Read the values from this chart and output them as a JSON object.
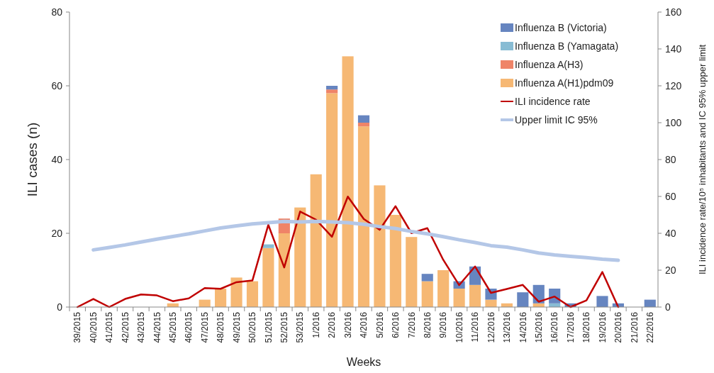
{
  "chart_data": {
    "type": "bar",
    "stacked": true,
    "xlabel": "Weeks",
    "ylabel": "ILI cases (n)",
    "y2label": "ILI incidence rate/10⁵ inhabitants and IC  95% upper limit",
    "categories": [
      "39/2015",
      "40/2015",
      "41/2015",
      "42/2015",
      "43/2015",
      "44/2015",
      "45/2015",
      "46/2015",
      "47/2015",
      "48/2015",
      "49/2015",
      "50/2015",
      "51/2015",
      "52/2015",
      "53/2015",
      "1/2016",
      "2/2016",
      "3/2016",
      "4/2016",
      "5/2016",
      "6/2016",
      "7/2016",
      "8/2016",
      "9/2016",
      "10/2016",
      "11/2016",
      "12/2016",
      "13/2016",
      "14/2016",
      "15/2016",
      "16/2016",
      "17/2016",
      "18/2016",
      "19/2016",
      "20/2016",
      "21/2016",
      "22/2016"
    ],
    "ylim": [
      0,
      80
    ],
    "yticks": [
      0,
      20,
      40,
      60,
      80
    ],
    "y2lim": [
      0,
      160
    ],
    "y2ticks": [
      0,
      20,
      40,
      60,
      80,
      100,
      120,
      140,
      160
    ],
    "legend": "top right",
    "grid": false,
    "series": [
      {
        "name": "Influenza A(H1)pdm09",
        "color": "#f6b874",
        "values": [
          0,
          0,
          0,
          0,
          0,
          0,
          1,
          0,
          2,
          5,
          8,
          7,
          16,
          20,
          27,
          36,
          58,
          68,
          49,
          33,
          25,
          19,
          7,
          10,
          5,
          6,
          2,
          1,
          0,
          1,
          0,
          0,
          0,
          0,
          0,
          0,
          0
        ]
      },
      {
        "name": "Influenza A(H3)",
        "color": "#ef8468",
        "values": [
          0,
          0,
          0,
          0,
          0,
          0,
          0,
          0,
          0,
          0,
          0,
          0,
          0,
          4,
          0,
          0,
          1,
          0,
          1,
          0,
          0,
          0,
          0,
          0,
          0,
          0,
          0,
          0,
          0,
          0,
          0,
          0,
          0,
          0,
          0,
          0,
          0
        ]
      },
      {
        "name": "Influenza B (Yamagata)",
        "color": "#88bcd4",
        "values": [
          0,
          0,
          0,
          0,
          0,
          0,
          0,
          0,
          0,
          0,
          0,
          0,
          1,
          0,
          0,
          0,
          0,
          0,
          0,
          0,
          0,
          0,
          0,
          0,
          0,
          0,
          0,
          0,
          0,
          0,
          1,
          0,
          0,
          0,
          0,
          0,
          0
        ]
      },
      {
        "name": "Influenza B (Victoria)",
        "color": "#6685c0",
        "values": [
          0,
          0,
          0,
          0,
          0,
          0,
          0,
          0,
          0,
          0,
          0,
          0,
          0,
          0,
          0,
          0,
          1,
          0,
          2,
          0,
          0,
          0,
          2,
          0,
          2,
          5,
          3,
          0,
          4,
          5,
          4,
          1,
          0,
          3,
          1,
          0,
          2
        ]
      },
      {
        "name": "ILI incidence rate",
        "type": "line",
        "axis": "y2",
        "color": "#c00000",
        "values": [
          0,
          4.4,
          0,
          4.4,
          6.8,
          6.3,
          3.2,
          4.7,
          10.3,
          9.9,
          13.5,
          14.4,
          44.6,
          21.5,
          51.8,
          47.4,
          38.1,
          59.9,
          47.8,
          41.9,
          54.7,
          40.1,
          42.8,
          25.6,
          11.9,
          22,
          7.7,
          9.8,
          12,
          2.9,
          5.7,
          0,
          3.6,
          19,
          0,
          null,
          null
        ]
      },
      {
        "name": "Upper limit IC 95%",
        "type": "line",
        "axis": "y2",
        "color": "#b4c7e7",
        "values": [
          null,
          31,
          32.3,
          33.7,
          35.3,
          36.8,
          38.3,
          39.7,
          41.3,
          42.9,
          44,
          45.1,
          45.8,
          46.4,
          46.2,
          46.4,
          46.2,
          45.8,
          44.9,
          43.6,
          42.6,
          41,
          39.7,
          38.2,
          36.5,
          35,
          33.3,
          32.5,
          31,
          29.3,
          28.3,
          27.5,
          26.8,
          26,
          25.4,
          null,
          null
        ]
      }
    ]
  }
}
